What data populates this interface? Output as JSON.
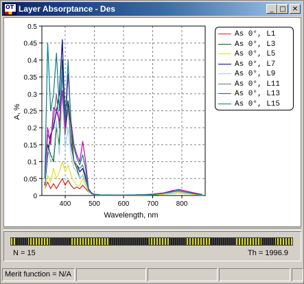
{
  "window": {
    "title": "Layer Absorptance - Des",
    "icon_text": "OT",
    "buttons": {
      "minimize": "_",
      "maximize": "□",
      "close": "✕"
    }
  },
  "chart_data": {
    "type": "line",
    "xlabel": "Wavelength, nm",
    "ylabel": "A, %",
    "xlim": [
      320,
      880
    ],
    "ylim": [
      0,
      0.5
    ],
    "x_ticks": [
      400,
      500,
      600,
      700,
      800
    ],
    "y_ticks": [
      0,
      0.05,
      0.1,
      0.15,
      0.2,
      0.25,
      0.3,
      0.35,
      0.4,
      0.45,
      0.5
    ],
    "y_tick_labels": [
      "0",
      "0.05",
      "0.1",
      "0.15",
      "0.2",
      "0.25",
      "0.3",
      "0.35",
      "0.4",
      "0.45",
      "0.5"
    ],
    "grid": true,
    "legend_position": "top-right",
    "x": [
      330,
      340,
      350,
      360,
      370,
      380,
      390,
      400,
      410,
      420,
      430,
      440,
      450,
      460,
      470,
      480,
      490,
      500,
      520,
      560,
      600,
      650,
      700,
      740,
      770,
      790,
      810,
      840,
      870
    ],
    "series": [
      {
        "name": "As 0°, L1",
        "color": "#cc2222",
        "values": [
          0.02,
          0.04,
          0.02,
          0.035,
          0.02,
          0.035,
          0.05,
          0.03,
          0.045,
          0.03,
          0.02,
          0.025,
          0.02,
          0.03,
          0.02,
          0.01,
          0.005,
          0.003,
          0.002,
          0.001,
          0.001,
          0.001,
          0.002,
          0.004,
          0.006,
          0.008,
          0.006,
          0.004,
          0.002
        ]
      },
      {
        "name": "As 0°, L3",
        "color": "#006000",
        "values": [
          0.05,
          0.15,
          0.12,
          0.1,
          0.2,
          0.15,
          0.4,
          0.25,
          0.28,
          0.2,
          0.1,
          0.08,
          0.05,
          0.06,
          0.04,
          0.015,
          0.006,
          0.003,
          0.002,
          0.001,
          0.001,
          0.002,
          0.003,
          0.006,
          0.01,
          0.012,
          0.009,
          0.005,
          0.002
        ]
      },
      {
        "name": "As 0°, L5",
        "color": "#e0e020",
        "values": [
          0.02,
          0.06,
          0.04,
          0.08,
          0.05,
          0.07,
          0.1,
          0.07,
          0.09,
          0.06,
          0.04,
          0.03,
          0.03,
          0.05,
          0.03,
          0.01,
          0.004,
          0.002,
          0.001,
          0.001,
          0.001,
          0.001,
          0.002,
          0.004,
          0.006,
          0.008,
          0.006,
          0.003,
          0.001
        ]
      },
      {
        "name": "As 0°, L7",
        "color": "#000090",
        "values": [
          0.03,
          0.12,
          0.18,
          0.2,
          0.25,
          0.3,
          0.46,
          0.2,
          0.27,
          0.15,
          0.1,
          0.09,
          0.07,
          0.08,
          0.05,
          0.015,
          0.006,
          0.003,
          0.002,
          0.001,
          0.001,
          0.002,
          0.003,
          0.007,
          0.012,
          0.014,
          0.01,
          0.006,
          0.002
        ]
      },
      {
        "name": "As 0°, L9",
        "color": "#a0c8e8",
        "values": [
          0.04,
          0.14,
          0.1,
          0.12,
          0.22,
          0.12,
          0.3,
          0.14,
          0.2,
          0.12,
          0.08,
          0.07,
          0.05,
          0.06,
          0.04,
          0.012,
          0.005,
          0.002,
          0.001,
          0.001,
          0.001,
          0.002,
          0.003,
          0.006,
          0.01,
          0.012,
          0.009,
          0.005,
          0.002
        ]
      },
      {
        "name": "As 0°, L11",
        "color": "#707070",
        "values": [
          0.05,
          0.18,
          0.16,
          0.22,
          0.3,
          0.2,
          0.36,
          0.18,
          0.26,
          0.16,
          0.1,
          0.09,
          0.08,
          0.09,
          0.06,
          0.015,
          0.006,
          0.003,
          0.002,
          0.001,
          0.001,
          0.002,
          0.003,
          0.007,
          0.012,
          0.014,
          0.011,
          0.006,
          0.002
        ]
      },
      {
        "name": "As 0°, L13",
        "color": "#c000c0",
        "values": [
          0.06,
          0.2,
          0.15,
          0.26,
          0.25,
          0.22,
          0.31,
          0.2,
          0.36,
          0.22,
          0.15,
          0.12,
          0.1,
          0.16,
          0.1,
          0.02,
          0.008,
          0.004,
          0.002,
          0.001,
          0.001,
          0.002,
          0.004,
          0.008,
          0.015,
          0.018,
          0.014,
          0.008,
          0.003
        ]
      },
      {
        "name": "As 0°, L15",
        "color": "#008080",
        "values": [
          0.05,
          0.45,
          0.25,
          0.3,
          0.42,
          0.25,
          0.37,
          0.22,
          0.4,
          0.2,
          0.14,
          0.11,
          0.09,
          0.12,
          0.08,
          0.018,
          0.007,
          0.003,
          0.002,
          0.001,
          0.001,
          0.002,
          0.003,
          0.007,
          0.012,
          0.015,
          0.011,
          0.006,
          0.002
        ]
      }
    ]
  },
  "structure": {
    "n_label": "N = 15",
    "th_label": "Th = 1996.9",
    "dark_segments": [
      [
        0.02,
        0.06
      ],
      [
        0.14,
        0.21
      ],
      [
        0.35,
        0.49
      ],
      [
        0.56,
        0.62
      ],
      [
        0.71,
        0.8
      ],
      [
        0.89,
        0.94
      ]
    ]
  },
  "status_bar": {
    "merit": "Merit function = N/A",
    "panels": [
      "",
      "",
      "",
      ""
    ]
  },
  "colors": {
    "titlebar_start": "#0a246a",
    "titlebar_end": "#a6caf0",
    "face": "#d4d0c8"
  }
}
